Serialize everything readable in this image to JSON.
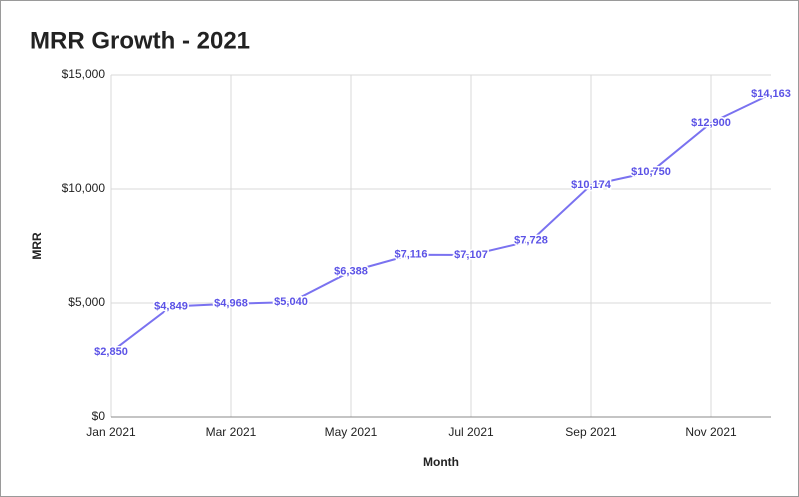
{
  "chart_data": {
    "type": "line",
    "title": "MRR Growth - 2021",
    "x_label": "Month",
    "y_label": "MRR",
    "categories": [
      "Jan 2021",
      null,
      "Mar 2021",
      null,
      "May 2021",
      null,
      "Jul 2021",
      null,
      "Sep 2021",
      null,
      "Nov 2021",
      null
    ],
    "values": [
      2850,
      4849,
      4968,
      5040,
      6388,
      7116,
      7107,
      7728,
      10174,
      10750,
      12900,
      14163
    ],
    "value_labels": [
      "$2,850",
      "$4,849",
      "$4,968",
      "$5,040",
      "$6,388",
      "$7,116",
      "$7,107",
      "$7,728",
      "$10,174",
      "$10,750",
      "$12,900",
      "$14,163"
    ],
    "color": "#7a72f0",
    "label_color": "#5b52e6",
    "ylim": [
      0,
      15000
    ],
    "yticks": [
      {
        "value": 0,
        "label": "$0"
      },
      {
        "value": 5000,
        "label": "$5,000"
      },
      {
        "value": 10000,
        "label": "$10,000"
      },
      {
        "value": 15000,
        "label": "$15,000"
      }
    ],
    "grid": true
  }
}
